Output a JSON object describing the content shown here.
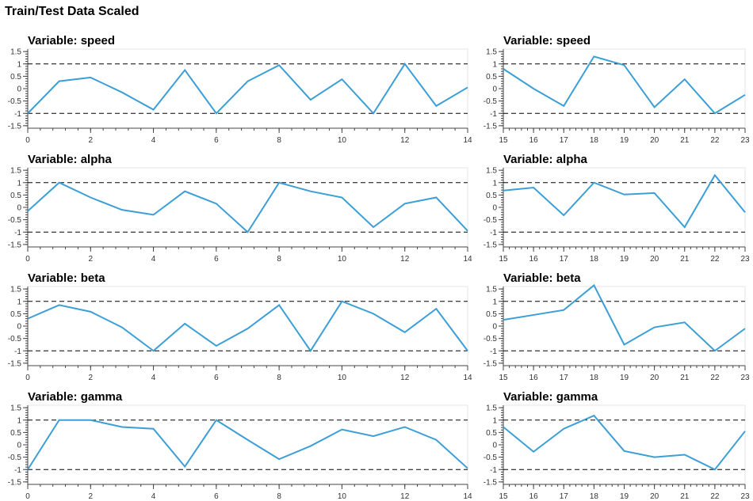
{
  "page": {
    "title": "Train/Test Data Scaled"
  },
  "style": {
    "line_color": "#3b9fd6",
    "ref_color": "#000000"
  },
  "chart_data": [
    {
      "type": "line",
      "title": "Variable: speed",
      "xlim": [
        0,
        14
      ],
      "ylim": [
        -1.6,
        1.6
      ],
      "x_ticks": [
        0,
        2,
        4,
        6,
        8,
        10,
        12,
        14
      ],
      "y_ticks": [
        -1.5,
        -1,
        -0.5,
        0,
        0.5,
        1,
        1.5
      ],
      "y_tick_labels": [
        "-1.5",
        "-1",
        "-0.5",
        "0",
        "0.5",
        "1",
        "1.5"
      ],
      "reference_lines": [
        1,
        -1
      ],
      "x": [
        0,
        1,
        2,
        3,
        4,
        5,
        6,
        7,
        8,
        9,
        10,
        11,
        12,
        13,
        14
      ],
      "values": [
        -1.0,
        0.3,
        0.45,
        -0.15,
        -0.85,
        0.75,
        -1.0,
        0.3,
        0.95,
        -0.45,
        0.38,
        -1.0,
        1.0,
        -0.7,
        0.05
      ]
    },
    {
      "type": "line",
      "title": "Variable: speed",
      "xlim": [
        15,
        23
      ],
      "ylim": [
        -1.6,
        1.6
      ],
      "x_ticks": [
        15,
        16,
        17,
        18,
        19,
        20,
        21,
        22,
        23
      ],
      "y_ticks": [
        -1.5,
        -1,
        -0.5,
        0,
        0.5,
        1,
        1.5
      ],
      "y_tick_labels": [
        "-1.5",
        "-1",
        "-0.5",
        "0",
        "0.5",
        "1",
        "1.5"
      ],
      "reference_lines": [
        1,
        -1
      ],
      "x": [
        15,
        16,
        17,
        18,
        19,
        20,
        21,
        22,
        23
      ],
      "values": [
        0.8,
        0.0,
        -0.7,
        1.3,
        0.95,
        -0.75,
        0.38,
        -1.0,
        -0.25
      ]
    },
    {
      "type": "line",
      "title": "Variable: alpha",
      "xlim": [
        0,
        14
      ],
      "ylim": [
        -1.6,
        1.6
      ],
      "x_ticks": [
        0,
        2,
        4,
        6,
        8,
        10,
        12,
        14
      ],
      "y_ticks": [
        -1.5,
        -1,
        -0.5,
        0,
        0.5,
        1,
        1.5
      ],
      "y_tick_labels": [
        "-1.5",
        "-1",
        "-0.5",
        "0",
        "0.5",
        "1",
        "1.5"
      ],
      "reference_lines": [
        1,
        -1
      ],
      "x": [
        0,
        1,
        2,
        3,
        4,
        5,
        6,
        7,
        8,
        9,
        10,
        11,
        12,
        13,
        14
      ],
      "values": [
        -0.15,
        1.0,
        0.4,
        -0.1,
        -0.3,
        0.65,
        0.15,
        -1.0,
        1.0,
        0.65,
        0.4,
        -0.8,
        0.15,
        0.4,
        -0.95
      ]
    },
    {
      "type": "line",
      "title": "Variable: alpha",
      "xlim": [
        15,
        23
      ],
      "ylim": [
        -1.6,
        1.6
      ],
      "x_ticks": [
        15,
        16,
        17,
        18,
        19,
        20,
        21,
        22,
        23
      ],
      "y_ticks": [
        -1.5,
        -1,
        -0.5,
        0,
        0.5,
        1,
        1.5
      ],
      "y_tick_labels": [
        "-1.5",
        "-1",
        "-0.5",
        "0",
        "0.5",
        "1",
        "1.5"
      ],
      "reference_lines": [
        1,
        -1
      ],
      "x": [
        15,
        16,
        17,
        18,
        19,
        20,
        21,
        22,
        23
      ],
      "values": [
        0.68,
        0.8,
        -0.32,
        1.0,
        0.52,
        0.58,
        -0.8,
        1.3,
        -0.2
      ]
    },
    {
      "type": "line",
      "title": "Variable: beta",
      "xlim": [
        0,
        14
      ],
      "ylim": [
        -1.6,
        1.6
      ],
      "x_ticks": [
        0,
        2,
        4,
        6,
        8,
        10,
        12,
        14
      ],
      "y_ticks": [
        -1.5,
        -1,
        -0.5,
        0,
        0.5,
        1,
        1.5
      ],
      "y_tick_labels": [
        "-1.5",
        "-1",
        "-0.5",
        "0",
        "0.5",
        "1",
        "1.5"
      ],
      "reference_lines": [
        1,
        -1
      ],
      "x": [
        0,
        1,
        2,
        3,
        4,
        5,
        6,
        7,
        8,
        9,
        10,
        11,
        12,
        13,
        14
      ],
      "values": [
        0.3,
        0.85,
        0.58,
        -0.05,
        -1.0,
        0.1,
        -0.8,
        -0.1,
        0.85,
        -1.0,
        1.0,
        0.5,
        -0.25,
        0.7,
        -1.0
      ]
    },
    {
      "type": "line",
      "title": "Variable: beta",
      "xlim": [
        15,
        23
      ],
      "ylim": [
        -1.6,
        1.6
      ],
      "x_ticks": [
        15,
        16,
        17,
        18,
        19,
        20,
        21,
        22,
        23
      ],
      "y_ticks": [
        -1.5,
        -1,
        -0.5,
        0,
        0.5,
        1,
        1.5
      ],
      "y_tick_labels": [
        "-1.5",
        "-1",
        "-0.5",
        "0",
        "0.5",
        "1",
        "1.5"
      ],
      "reference_lines": [
        1,
        -1
      ],
      "x": [
        15,
        16,
        17,
        18,
        19,
        20,
        21,
        22,
        23
      ],
      "values": [
        0.25,
        0.45,
        0.65,
        1.65,
        -0.75,
        -0.05,
        0.15,
        -1.0,
        -0.1
      ]
    },
    {
      "type": "line",
      "title": "Variable: gamma",
      "xlim": [
        0,
        14
      ],
      "ylim": [
        -1.6,
        1.6
      ],
      "x_ticks": [
        0,
        2,
        4,
        6,
        8,
        10,
        12,
        14
      ],
      "y_ticks": [
        -1.5,
        -1,
        -0.5,
        0,
        0.5,
        1,
        1.5
      ],
      "y_tick_labels": [
        "-1.5",
        "-1",
        "-0.5",
        "0",
        "0.5",
        "1",
        "1.5"
      ],
      "reference_lines": [
        1,
        -1
      ],
      "x": [
        0,
        1,
        2,
        3,
        4,
        5,
        6,
        7,
        8,
        9,
        10,
        11,
        12,
        13,
        14
      ],
      "values": [
        -1.0,
        1.0,
        1.0,
        0.72,
        0.65,
        -0.88,
        1.0,
        0.2,
        -0.58,
        -0.05,
        0.62,
        0.35,
        0.72,
        0.2,
        -0.95
      ]
    },
    {
      "type": "line",
      "title": "Variable: gamma",
      "xlim": [
        15,
        23
      ],
      "ylim": [
        -1.6,
        1.6
      ],
      "x_ticks": [
        15,
        16,
        17,
        18,
        19,
        20,
        21,
        22,
        23
      ],
      "y_ticks": [
        -1.5,
        -1,
        -0.5,
        0,
        0.5,
        1,
        1.5
      ],
      "y_tick_labels": [
        "-1.5",
        "-1",
        "-0.5",
        "0",
        "0.5",
        "1",
        "1.5"
      ],
      "reference_lines": [
        1,
        -1
      ],
      "x": [
        15,
        16,
        17,
        18,
        19,
        20,
        21,
        22,
        23
      ],
      "values": [
        0.72,
        -0.28,
        0.65,
        1.18,
        -0.25,
        -0.5,
        -0.4,
        -1.0,
        0.55
      ]
    }
  ]
}
